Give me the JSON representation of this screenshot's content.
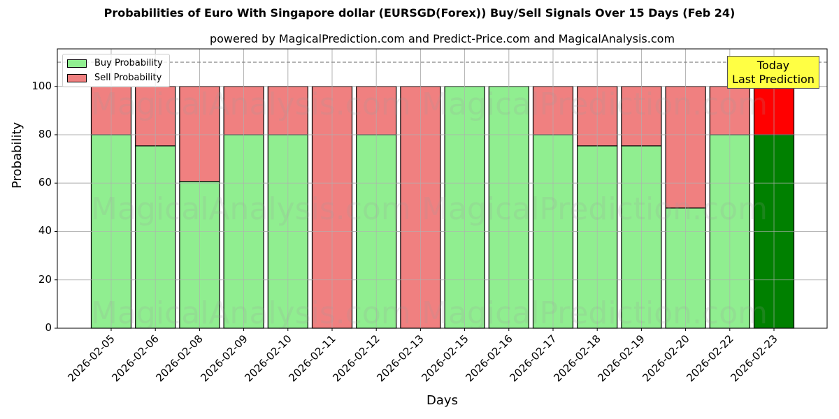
{
  "header": {
    "title": "Probabilities of Euro With Singapore dollar (EURSGD(Forex)) Buy/Sell Signals Over 15 Days (Feb 24)",
    "subtitle": "powered by MagicalPrediction.com and Predict-Price.com and MagicalAnalysis.com"
  },
  "legend": {
    "buy_label": "Buy Probability",
    "sell_label": "Sell Probability"
  },
  "annotation": {
    "line1": "Today",
    "line2": "Last Prediction"
  },
  "watermarks": [
    "MagicalAnalysis.com",
    "MagicalPrediction.com"
  ],
  "colors": {
    "buy": "#90ee90",
    "sell": "#f08080",
    "today_buy": "#008000",
    "today_sell": "#ff0000",
    "annotation_bg": "#ffff44"
  },
  "chart_data": {
    "type": "bar",
    "stacked": true,
    "title": "Probabilities of Euro With Singapore dollar (EURSGD(Forex)) Buy/Sell Signals Over 15 Days (Feb 24)",
    "subtitle": "powered by MagicalPrediction.com and Predict-Price.com and MagicalAnalysis.com",
    "xlabel": "Days",
    "ylabel": "Probability",
    "ylim": [
      0,
      115.5
    ],
    "yticks": [
      0,
      20,
      40,
      60,
      80,
      100
    ],
    "grid": true,
    "legend_position": "upper left",
    "reference_line": {
      "y": 110,
      "style": "dashed",
      "color": "#808080"
    },
    "categories": [
      "2026-02-05",
      "2026-02-06",
      "2026-02-08",
      "2026-02-09",
      "2026-02-10",
      "2026-02-11",
      "2026-02-12",
      "2026-02-13",
      "2026-02-15",
      "2026-02-16",
      "2026-02-17",
      "2026-02-18",
      "2026-02-19",
      "2026-02-20",
      "2026-02-22",
      "2026-02-23"
    ],
    "series": [
      {
        "name": "Buy Probability",
        "values": [
          80,
          75.4,
          60.7,
          80,
          80,
          0,
          80,
          0,
          100,
          100,
          80,
          75.4,
          75.4,
          49.7,
          80,
          80
        ]
      },
      {
        "name": "Sell Probability",
        "values": [
          20,
          24.6,
          39.3,
          20,
          20,
          100,
          20,
          100,
          0,
          0,
          20,
          24.6,
          24.6,
          50.3,
          20,
          20
        ]
      }
    ],
    "highlight": {
      "category": "2026-02-23",
      "label": "Today\nLast Prediction"
    }
  }
}
